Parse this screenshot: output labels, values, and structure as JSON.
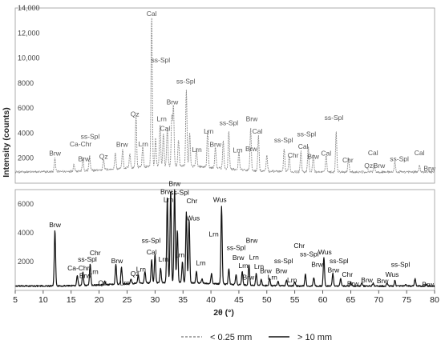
{
  "chart_data": {
    "type": "line",
    "ylabel": "Intensity (counts)",
    "xlabel": "2θ (°)",
    "xlim": [
      5,
      80
    ],
    "x_ticks": [
      5,
      10,
      15,
      20,
      25,
      30,
      35,
      40,
      45,
      50,
      55,
      60,
      65,
      70,
      75,
      80
    ],
    "x_tick_labels": [
      "5",
      "10",
      "15",
      "20",
      "25",
      "30",
      "35",
      "40",
      "45",
      "50",
      "55",
      "60",
      "65",
      "70",
      "75",
      "80"
    ],
    "top_panel": {
      "ylim": [
        0,
        14000
      ],
      "y_ticks": [
        2000,
        4000,
        6000,
        8000,
        10000,
        12000,
        14000
      ],
      "y_tick_labels": [
        "2000",
        "4000",
        "6000",
        "8000",
        "10,000",
        "12,000",
        "14,000"
      ]
    },
    "bottom_panel": {
      "ylim": [
        0,
        7000
      ],
      "y_ticks": [
        2000,
        4000,
        6000
      ],
      "y_tick_labels": [
        "2000",
        "4000",
        "6000"
      ]
    },
    "series": [
      {
        "name": "< 0.25 mm",
        "panel": "top",
        "style": "dashed",
        "color": "#8c8c8c",
        "baseline": 900,
        "peaks": [
          {
            "x": 12.1,
            "y": 2000
          },
          {
            "x": 15.5,
            "y": 1500
          },
          {
            "x": 17.1,
            "y": 1900
          },
          {
            "x": 18.3,
            "y": 2100
          },
          {
            "x": 20.8,
            "y": 1800
          },
          {
            "x": 22.9,
            "y": 2200
          },
          {
            "x": 24.2,
            "y": 2400
          },
          {
            "x": 25.5,
            "y": 2000
          },
          {
            "x": 26.6,
            "y": 5000
          },
          {
            "x": 27.8,
            "y": 2500
          },
          {
            "x": 29.4,
            "y": 13000
          },
          {
            "x": 30.1,
            "y": 3100
          },
          {
            "x": 30.9,
            "y": 4200
          },
          {
            "x": 31.5,
            "y": 3500
          },
          {
            "x": 32.2,
            "y": 3900
          },
          {
            "x": 33.0,
            "y": 4800
          },
          {
            "x": 33.3,
            "y": 5700
          },
          {
            "x": 34.2,
            "y": 3000
          },
          {
            "x": 35.6,
            "y": 7000
          },
          {
            "x": 36.2,
            "y": 3600
          },
          {
            "x": 37.4,
            "y": 2300
          },
          {
            "x": 39.4,
            "y": 3800
          },
          {
            "x": 40.8,
            "y": 2600
          },
          {
            "x": 42.2,
            "y": 3100
          },
          {
            "x": 43.2,
            "y": 4000
          },
          {
            "x": 45.0,
            "y": 2300
          },
          {
            "x": 47.1,
            "y": 4300
          },
          {
            "x": 48.5,
            "y": 3700
          },
          {
            "x": 50.0,
            "y": 2200
          },
          {
            "x": 53.1,
            "y": 2700
          },
          {
            "x": 54.0,
            "y": 2200
          },
          {
            "x": 56.1,
            "y": 2600
          },
          {
            "x": 57.4,
            "y": 2900
          },
          {
            "x": 58.3,
            "y": 2300
          },
          {
            "x": 60.6,
            "y": 2300
          },
          {
            "x": 62.4,
            "y": 4100
          },
          {
            "x": 64.6,
            "y": 2000
          },
          {
            "x": 69.2,
            "y": 1600
          },
          {
            "x": 72.9,
            "y": 1700
          },
          {
            "x": 77.3,
            "y": 1400
          }
        ],
        "labels": [
          {
            "text": "Brw",
            "x": 12.1,
            "y": 2200
          },
          {
            "text": "Ca-Chr",
            "x": 16.7,
            "y": 2950
          },
          {
            "text": "Brw",
            "x": 17.3,
            "y": 1750
          },
          {
            "text": "ss-Spl",
            "x": 18.4,
            "y": 3550
          },
          {
            "text": "Qz",
            "x": 20.8,
            "y": 1950
          },
          {
            "text": "Brw",
            "x": 24.1,
            "y": 2900
          },
          {
            "text": "Qz",
            "x": 26.4,
            "y": 5350
          },
          {
            "text": "Lrn",
            "x": 27.9,
            "y": 2950
          },
          {
            "text": "Cal",
            "x": 29.4,
            "y": 13350
          },
          {
            "text": "ss-Spl",
            "x": 31.0,
            "y": 9650
          },
          {
            "text": "Lrn",
            "x": 31.2,
            "y": 4950
          },
          {
            "text": "Cal",
            "x": 31.8,
            "y": 4200
          },
          {
            "text": "Brw",
            "x": 33.1,
            "y": 6300
          },
          {
            "text": "ss-Spl",
            "x": 35.5,
            "y": 7950
          },
          {
            "text": "Lrn",
            "x": 37.5,
            "y": 2500
          },
          {
            "text": "Lrn",
            "x": 39.6,
            "y": 3950
          },
          {
            "text": "Brw",
            "x": 40.8,
            "y": 2900
          },
          {
            "text": "ss-Spl",
            "x": 43.2,
            "y": 4650
          },
          {
            "text": "Lrn",
            "x": 44.8,
            "y": 2450
          },
          {
            "text": "Brw",
            "x": 47.3,
            "y": 4950
          },
          {
            "text": "Cal",
            "x": 48.3,
            "y": 3950
          },
          {
            "text": "Brw",
            "x": 47.2,
            "y": 2550
          },
          {
            "text": "ss-Spl",
            "x": 53.0,
            "y": 3250
          },
          {
            "text": "Chr",
            "x": 54.7,
            "y": 2050
          },
          {
            "text": "Cal",
            "x": 56.5,
            "y": 2750
          },
          {
            "text": "ss-Spl",
            "x": 57.1,
            "y": 3750
          },
          {
            "text": "Brw",
            "x": 58.3,
            "y": 1950
          },
          {
            "text": "ss-Spl",
            "x": 62.0,
            "y": 5050
          },
          {
            "text": "Cal",
            "x": 60.6,
            "y": 2200
          },
          {
            "text": "Chr",
            "x": 64.5,
            "y": 1650
          },
          {
            "text": "Cal",
            "x": 69.0,
            "y": 2250
          },
          {
            "text": "Qz",
            "x": 68.2,
            "y": 1200
          },
          {
            "text": "Brw",
            "x": 70.1,
            "y": 1200
          },
          {
            "text": "ss-Spl",
            "x": 73.7,
            "y": 1750
          },
          {
            "text": "Cal",
            "x": 77.3,
            "y": 2250
          },
          {
            "text": "Brw",
            "x": 79.1,
            "y": 1000
          }
        ]
      },
      {
        "name": "> 10 mm",
        "panel": "bottom",
        "style": "solid",
        "color": "#111111",
        "baseline": 300,
        "peaks": [
          {
            "x": 12.1,
            "y": 4200
          },
          {
            "x": 16.1,
            "y": 1000
          },
          {
            "x": 17.1,
            "y": 1250
          },
          {
            "x": 18.4,
            "y": 1800
          },
          {
            "x": 21.0,
            "y": 550
          },
          {
            "x": 23.0,
            "y": 1700
          },
          {
            "x": 24.0,
            "y": 1500
          },
          {
            "x": 25.7,
            "y": 650
          },
          {
            "x": 27.0,
            "y": 900
          },
          {
            "x": 28.2,
            "y": 1100
          },
          {
            "x": 29.4,
            "y": 1900
          },
          {
            "x": 30.0,
            "y": 2300
          },
          {
            "x": 31.0,
            "y": 1300
          },
          {
            "x": 32.2,
            "y": 6300
          },
          {
            "x": 32.8,
            "y": 6700
          },
          {
            "x": 33.5,
            "y": 6800
          },
          {
            "x": 34.0,
            "y": 3900
          },
          {
            "x": 34.9,
            "y": 1700
          },
          {
            "x": 35.6,
            "y": 5200
          },
          {
            "x": 36.1,
            "y": 4700
          },
          {
            "x": 37.4,
            "y": 1100
          },
          {
            "x": 38.4,
            "y": 600
          },
          {
            "x": 40.1,
            "y": 1000
          },
          {
            "x": 41.9,
            "y": 5700
          },
          {
            "x": 43.2,
            "y": 1400
          },
          {
            "x": 44.5,
            "y": 1000
          },
          {
            "x": 45.6,
            "y": 1200
          },
          {
            "x": 46.8,
            "y": 1700
          },
          {
            "x": 48.1,
            "y": 1100
          },
          {
            "x": 49.0,
            "y": 700
          },
          {
            "x": 50.5,
            "y": 800
          },
          {
            "x": 52.0,
            "y": 600
          },
          {
            "x": 53.5,
            "y": 700
          },
          {
            "x": 55.0,
            "y": 600
          },
          {
            "x": 56.9,
            "y": 1100
          },
          {
            "x": 58.4,
            "y": 900
          },
          {
            "x": 60.2,
            "y": 2300
          },
          {
            "x": 61.8,
            "y": 1200
          },
          {
            "x": 63.2,
            "y": 800
          },
          {
            "x": 65.0,
            "y": 600
          },
          {
            "x": 67.0,
            "y": 500
          },
          {
            "x": 69.0,
            "y": 500
          },
          {
            "x": 71.5,
            "y": 500
          },
          {
            "x": 72.9,
            "y": 700
          },
          {
            "x": 74.8,
            "y": 400
          },
          {
            "x": 76.5,
            "y": 800
          },
          {
            "x": 78.5,
            "y": 400
          }
        ],
        "labels": [
          {
            "text": "Brw",
            "x": 12.1,
            "y": 4400
          },
          {
            "text": "Ca-Chr",
            "x": 16.3,
            "y": 1400
          },
          {
            "text": "Brw",
            "x": 17.5,
            "y": 850
          },
          {
            "text": "ss-Spl",
            "x": 17.9,
            "y": 2000
          },
          {
            "text": "Chr",
            "x": 19.3,
            "y": 2450
          },
          {
            "text": "Lrn",
            "x": 19.0,
            "y": 1150
          },
          {
            "text": "Qz",
            "x": 20.6,
            "y": 350
          },
          {
            "text": "Brw",
            "x": 23.2,
            "y": 1900
          },
          {
            "text": "Lrn",
            "x": 24.6,
            "y": 350
          },
          {
            "text": "Qz",
            "x": 26.4,
            "y": 1000
          },
          {
            "text": "Lrn",
            "x": 27.5,
            "y": 1300
          },
          {
            "text": "Cal",
            "x": 29.4,
            "y": 2500
          },
          {
            "text": "ss-Spl",
            "x": 29.3,
            "y": 3300
          },
          {
            "text": "Lrn",
            "x": 31.5,
            "y": 2000
          },
          {
            "text": "Brw",
            "x": 32.0,
            "y": 6700
          },
          {
            "text": "Lrn",
            "x": 32.4,
            "y": 6150
          },
          {
            "text": "Brw",
            "x": 33.5,
            "y": 7250
          },
          {
            "text": "ss-Spl",
            "x": 34.4,
            "y": 6650
          },
          {
            "text": "Chr",
            "x": 36.6,
            "y": 6050
          },
          {
            "text": "Lrn",
            "x": 34.4,
            "y": 2300
          },
          {
            "text": "Wus",
            "x": 36.8,
            "y": 4850
          },
          {
            "text": "Lrn",
            "x": 38.2,
            "y": 1750
          },
          {
            "text": "Wus",
            "x": 41.6,
            "y": 6150
          },
          {
            "text": "Lrn",
            "x": 40.5,
            "y": 3750
          },
          {
            "text": "ss-Spl",
            "x": 44.5,
            "y": 2800
          },
          {
            "text": "Brw",
            "x": 44.9,
            "y": 2100
          },
          {
            "text": "Brw",
            "x": 47.3,
            "y": 3300
          },
          {
            "text": "Lrn",
            "x": 45.8,
            "y": 1550
          },
          {
            "text": "Lrn",
            "x": 47.7,
            "y": 2150
          },
          {
            "text": "Brw",
            "x": 46.7,
            "y": 750
          },
          {
            "text": "Lrn",
            "x": 48.6,
            "y": 1500
          },
          {
            "text": "Brw",
            "x": 49.8,
            "y": 1200
          },
          {
            "text": "ss-Spl",
            "x": 53.0,
            "y": 1900
          },
          {
            "text": "Chr",
            "x": 55.8,
            "y": 2950
          },
          {
            "text": "ss-Spl",
            "x": 57.6,
            "y": 2350
          },
          {
            "text": "Lrn",
            "x": 51.0,
            "y": 750
          },
          {
            "text": "Brw",
            "x": 52.6,
            "y": 1200
          },
          {
            "text": "Lrn",
            "x": 54.5,
            "y": 550
          },
          {
            "text": "Brw",
            "x": 59.0,
            "y": 1650
          },
          {
            "text": "Wus",
            "x": 60.4,
            "y": 2500
          },
          {
            "text": "ss-Spl",
            "x": 62.9,
            "y": 1900
          },
          {
            "text": "Brw",
            "x": 61.9,
            "y": 1250
          },
          {
            "text": "Chr",
            "x": 64.4,
            "y": 950
          },
          {
            "text": "Brw",
            "x": 65.4,
            "y": 300
          },
          {
            "text": "Brw",
            "x": 67.9,
            "y": 550
          },
          {
            "text": "Brw",
            "x": 70.7,
            "y": 500
          },
          {
            "text": "Wus",
            "x": 72.4,
            "y": 950
          },
          {
            "text": "ss-Spl",
            "x": 73.9,
            "y": 1650
          },
          {
            "text": "Brw",
            "x": 78.8,
            "y": 250
          }
        ]
      }
    ],
    "legend": {
      "position": "bottom-center",
      "items": [
        {
          "label": "< 0.25 mm",
          "style": "dashed",
          "color": "#8c8c8c"
        },
        {
          "label": "> 10 mm",
          "style": "solid",
          "color": "#111111"
        }
      ]
    },
    "grid": false
  }
}
